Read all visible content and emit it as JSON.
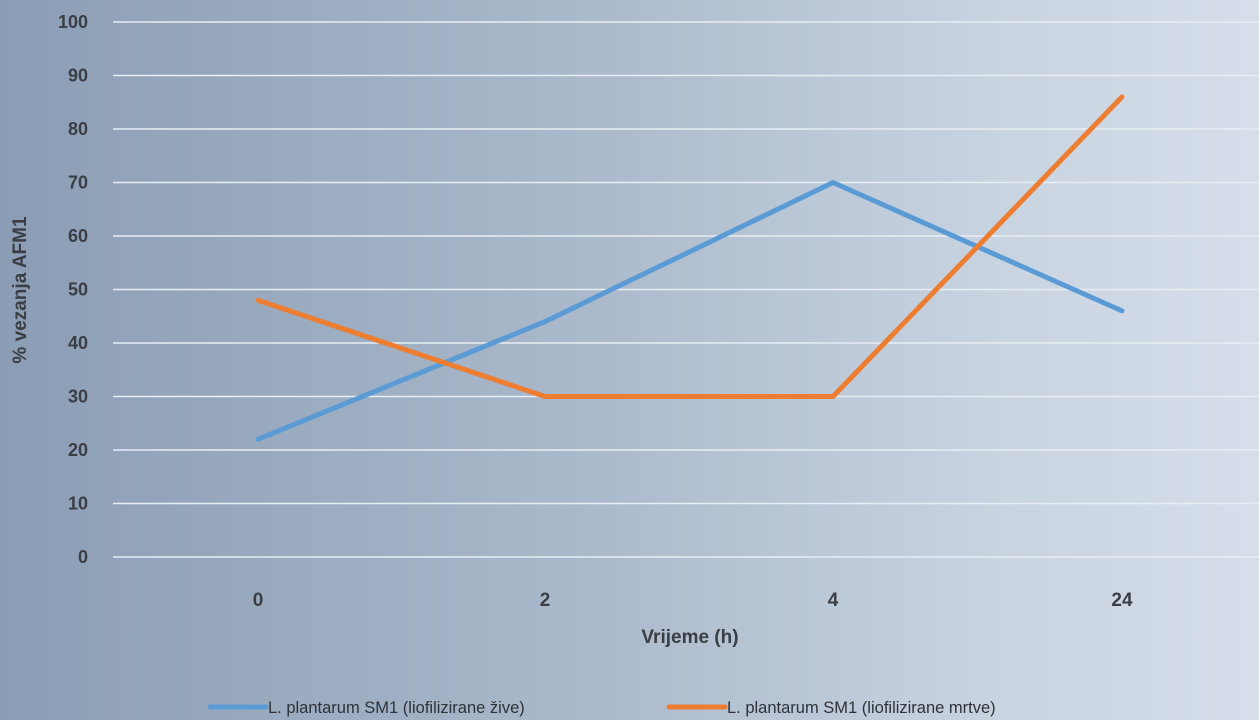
{
  "chart_data": {
    "type": "line",
    "categories": [
      "0",
      "2",
      "4",
      "24"
    ],
    "series": [
      {
        "name": "L. plantarum SM1 (liofilizirane žive)",
        "values": [
          22,
          44,
          70,
          46
        ],
        "color": "#5b9bd5"
      },
      {
        "name": "L. plantarum SM1 (liofilizirane mrtve)",
        "values": [
          48,
          30,
          30,
          86
        ],
        "color": "#ed7d31"
      }
    ],
    "xlabel": "Vrijeme (h)",
    "ylabel": "% vezanja AFM1",
    "ylim": [
      0,
      100
    ],
    "yticks": [
      "0",
      "10",
      "20",
      "30",
      "40",
      "50",
      "60",
      "70",
      "80",
      "90",
      "100"
    ],
    "grid": true,
    "legend": "bottom",
    "gridline_color": "#e8edf3"
  }
}
